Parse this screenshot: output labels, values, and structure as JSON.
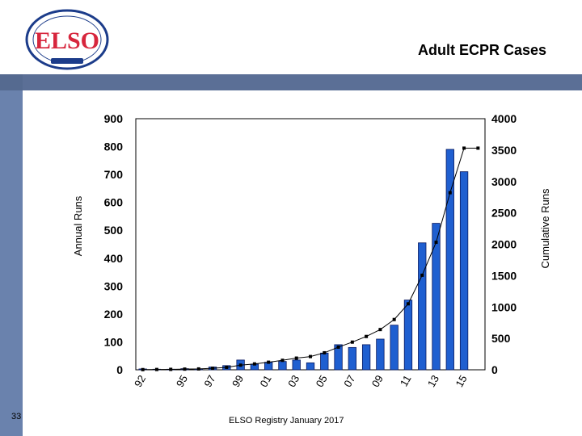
{
  "slide": {
    "title": "Adult ECPR Cases",
    "footer": "ELSO Registry January 2017",
    "slide_number": "33",
    "logo_text": "ELSO",
    "band_color": "#5b6f96"
  },
  "chart_data": {
    "type": "bar",
    "title": "Adult ECPR Cases",
    "ylabel": "Annual Runs",
    "y2label": "Cumulative Runs",
    "ylim": [
      0,
      900
    ],
    "y2lim": [
      0,
      4000
    ],
    "yticks": [
      0,
      100,
      200,
      300,
      400,
      500,
      600,
      700,
      800,
      900
    ],
    "y2ticks": [
      0,
      500,
      1000,
      1500,
      2000,
      2500,
      3000,
      3500,
      4000
    ],
    "categories": [
      "92",
      "93",
      "94",
      "95",
      "96",
      "97",
      "98",
      "99",
      "00",
      "01",
      "02",
      "03",
      "04",
      "05",
      "06",
      "07",
      "08",
      "09",
      "10",
      "11",
      "12",
      "13",
      "14",
      "15",
      "16"
    ],
    "xtick_labels": [
      "92",
      "95",
      "97",
      "99",
      "01",
      "03",
      "05",
      "07",
      "09",
      "11",
      "13",
      "15"
    ],
    "series": [
      {
        "name": "Annual Runs",
        "kind": "bar",
        "axis": "left",
        "color": "#1f5fd0",
        "values": [
          3,
          2,
          2,
          4,
          3,
          10,
          15,
          35,
          20,
          27,
          30,
          35,
          25,
          60,
          90,
          80,
          90,
          110,
          160,
          250,
          455,
          525,
          790,
          710,
          0
        ]
      },
      {
        "name": "Cumulative Runs",
        "kind": "line",
        "axis": "right",
        "color": "#000000",
        "values": [
          3,
          5,
          7,
          11,
          14,
          24,
          39,
          74,
          94,
          121,
          151,
          186,
          211,
          271,
          361,
          441,
          531,
          641,
          801,
          1051,
          1506,
          2031,
          2821,
          3531,
          3531
        ]
      }
    ],
    "grid": false,
    "legend": "none"
  }
}
